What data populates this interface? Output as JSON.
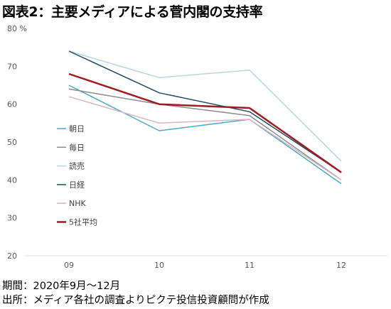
{
  "title": "図表2：主要メディアによる菅内閣の支持率",
  "footnotes": {
    "period": "期間：2020年9月～12月",
    "source": "出所：メディア各社の調査よりピクテ投信投資顧問が作成"
  },
  "chart_data": {
    "type": "line",
    "categories": [
      "09",
      "10",
      "11",
      "12"
    ],
    "ylim": [
      20,
      80
    ],
    "yticks": [
      20,
      30,
      40,
      50,
      60,
      70,
      80
    ],
    "ytick_labels": [
      "20",
      "30",
      "40",
      "50",
      "60",
      "70",
      "80 %"
    ],
    "grid": "horizontal baseline only",
    "legend_position": "left inside plot",
    "series": [
      {
        "name": "朝日",
        "color": "#4BACC6",
        "width": 1.5,
        "values": [
          65,
          53,
          56,
          39
        ]
      },
      {
        "name": "毎日",
        "color": "#8C8C8C",
        "width": 1.5,
        "values": [
          64,
          60,
          57,
          40
        ]
      },
      {
        "name": "読売",
        "color": "#B6D7DD",
        "width": 1.5,
        "values": [
          74,
          67,
          69,
          45
        ]
      },
      {
        "name": "日経",
        "color": "#1F4E63",
        "width": 1.5,
        "values": [
          74,
          63,
          58,
          42
        ]
      },
      {
        "name": "NHK",
        "color": "#D8B5C3",
        "width": 1.5,
        "values": [
          62,
          55,
          56,
          40
        ]
      },
      {
        "name": "5社平均",
        "color": "#A01C22",
        "width": 2.5,
        "values": [
          68,
          60,
          59,
          42
        ]
      }
    ]
  }
}
